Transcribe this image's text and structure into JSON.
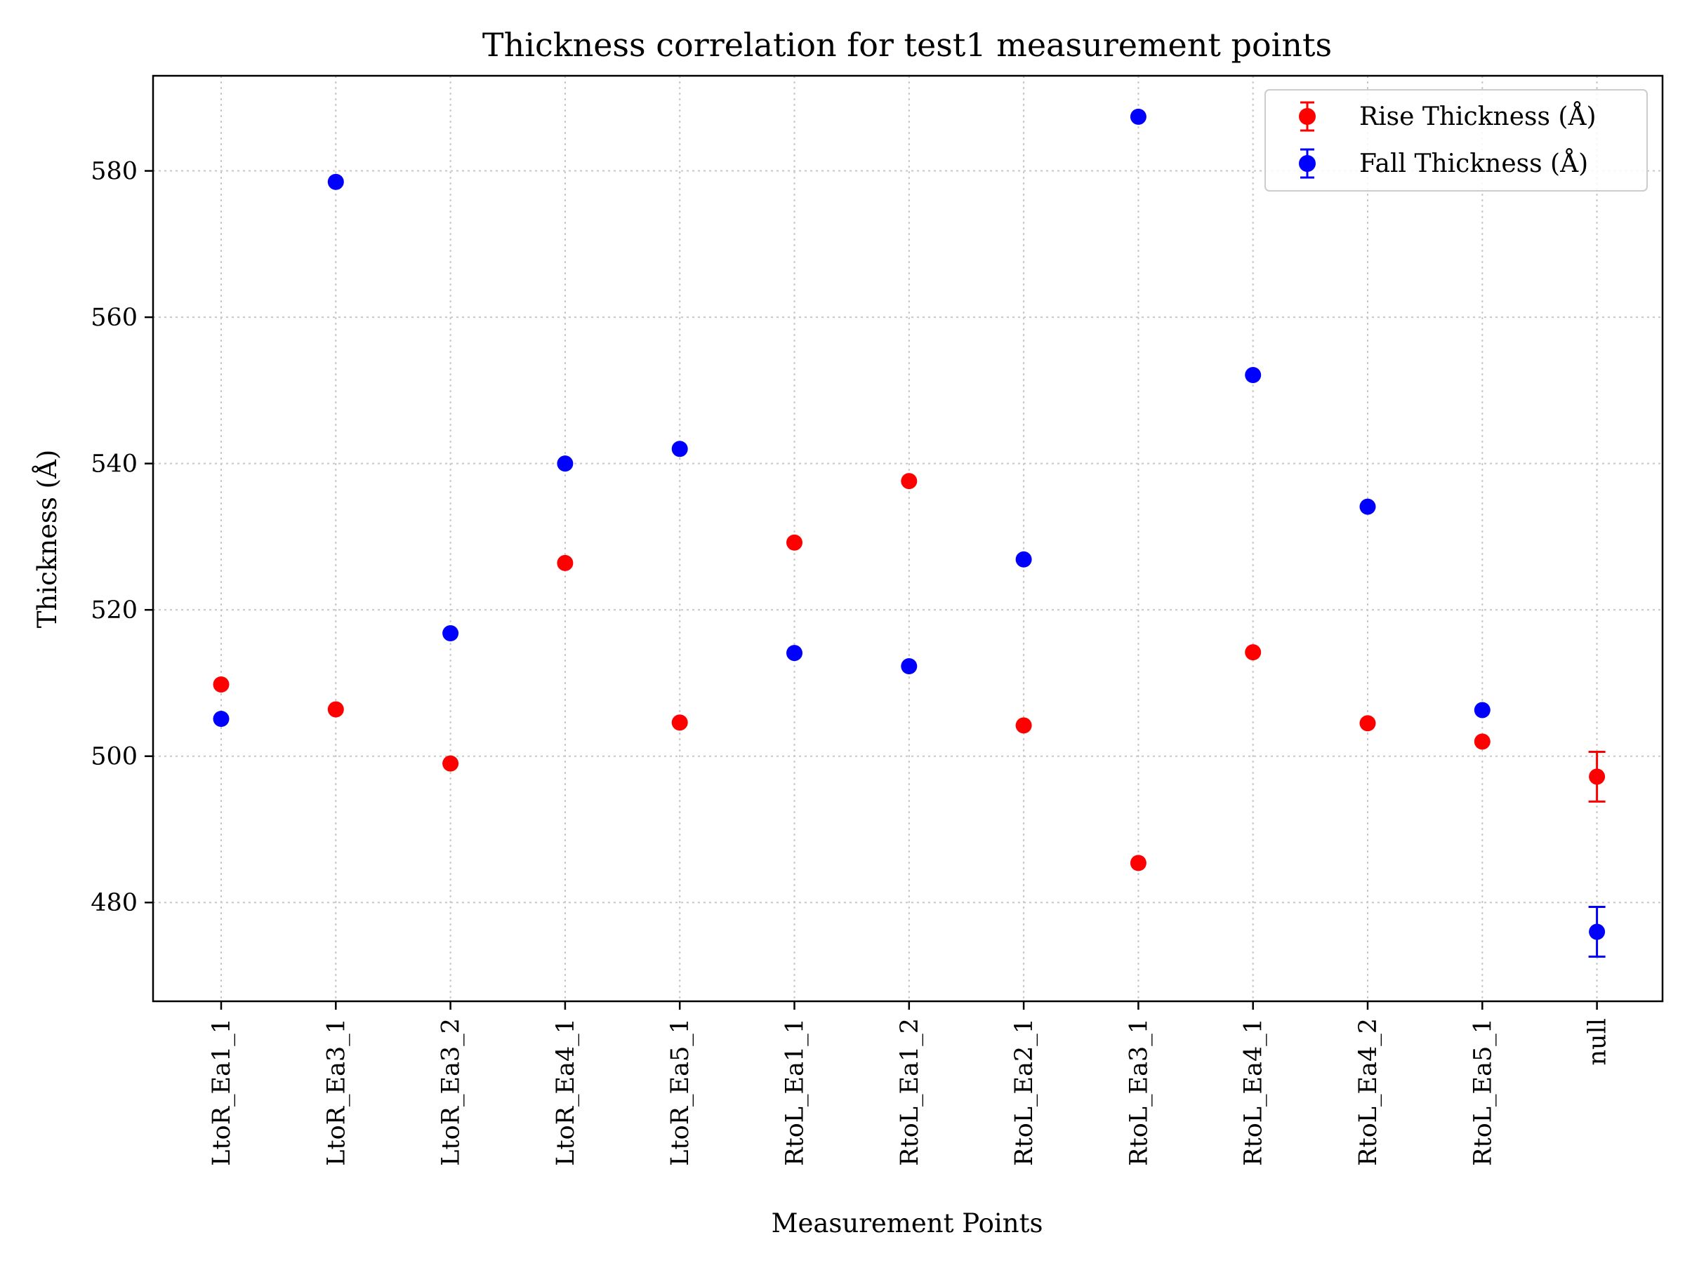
{
  "chart_data": {
    "type": "scatter",
    "title": "Thickness correlation for test1 measurement points",
    "xlabel": "Measurement Points",
    "ylabel": "Thickness (Å)",
    "ylim": [
      466.5,
      593
    ],
    "yticks": [
      480,
      500,
      520,
      540,
      560,
      580
    ],
    "grid": true,
    "legend_position": "top-right",
    "categories": [
      "LtoR_Ea1_1",
      "LtoR_Ea3_1",
      "LtoR_Ea3_2",
      "LtoR_Ea4_1",
      "LtoR_Ea5_1",
      "RtoL_Ea1_1",
      "RtoL_Ea1_2",
      "RtoL_Ea2_1",
      "RtoL_Ea3_1",
      "RtoL_Ea4_1",
      "RtoL_Ea4_2",
      "RtoL_Ea5_1",
      "null"
    ],
    "series": [
      {
        "name": "Rise Thickness (Å)",
        "color": "#ff0000",
        "values": [
          509.8,
          506.4,
          499.0,
          526.4,
          504.6,
          529.2,
          537.6,
          504.2,
          485.4,
          514.2,
          504.5,
          502.0,
          497.2
        ],
        "error": [
          null,
          null,
          null,
          null,
          null,
          null,
          null,
          null,
          null,
          null,
          null,
          null,
          3.4
        ]
      },
      {
        "name": "Fall Thickness (Å)",
        "color": "#0000ff",
        "values": [
          505.1,
          578.5,
          516.8,
          540.0,
          542.0,
          514.1,
          512.3,
          526.9,
          587.4,
          552.1,
          534.1,
          506.3,
          476.0
        ],
        "error": [
          null,
          null,
          null,
          null,
          null,
          null,
          null,
          null,
          null,
          null,
          null,
          null,
          3.4
        ]
      }
    ]
  }
}
